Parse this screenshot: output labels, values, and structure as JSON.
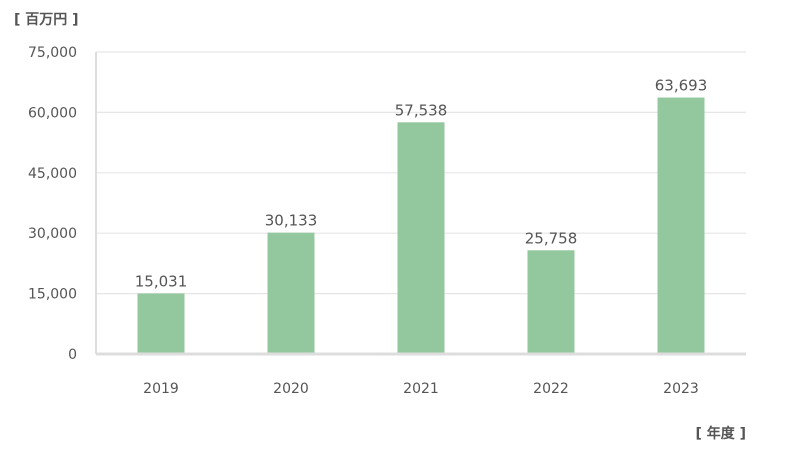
{
  "chart_data": {
    "type": "bar",
    "y_unit_label": "[ 百万円 ]",
    "x_unit_label": "[ 年度 ]",
    "categories": [
      "2019",
      "2020",
      "2021",
      "2022",
      "2023"
    ],
    "values": [
      15031,
      30133,
      57538,
      25758,
      63693
    ],
    "value_labels": [
      "15,031",
      "30,133",
      "57,538",
      "25,758",
      "63,693"
    ],
    "yticks": [
      0,
      15000,
      30000,
      45000,
      60000,
      75000
    ],
    "ytick_labels": [
      "0",
      "15,000",
      "30,000",
      "45,000",
      "60,000",
      "75,000"
    ],
    "ylim": [
      0,
      75000
    ],
    "grid": true,
    "bar_color": "#93c79d",
    "grid_color": "#e6e6e6",
    "axis_color": "#dddddd",
    "text_color": "#555555"
  }
}
